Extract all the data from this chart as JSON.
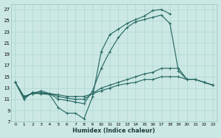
{
  "xlabel": "Humidex (Indice chaleur)",
  "background_color": "#cce8e4",
  "grid_color": "#aad4d0",
  "line_color": "#2a6b65",
  "xlim": [
    -0.5,
    23.5
  ],
  "ylim": [
    7,
    28
  ],
  "xticks": [
    0,
    1,
    2,
    3,
    4,
    5,
    6,
    7,
    8,
    9,
    10,
    11,
    12,
    13,
    14,
    15,
    16,
    17,
    18,
    19,
    20,
    21,
    22,
    23
  ],
  "yticks": [
    7,
    9,
    11,
    13,
    15,
    17,
    19,
    21,
    23,
    25,
    27
  ],
  "line1_x": [
    0,
    1,
    2,
    3,
    4,
    5,
    6,
    7,
    8,
    9,
    10,
    11,
    12,
    13,
    14,
    15,
    16,
    17,
    18,
    19,
    20,
    21
  ],
  "line1_y": [
    14.0,
    11.0,
    12.2,
    12.0,
    11.8,
    9.5,
    8.5,
    8.5,
    7.5,
    11.5,
    19.5,
    22.5,
    23.5,
    24.5,
    25.2,
    25.8,
    26.8,
    27.0,
    26.2,
    null,
    null,
    null
  ],
  "line2_x": [
    0,
    1,
    2,
    3,
    4,
    5,
    6,
    7,
    8,
    9,
    10,
    11,
    12,
    13,
    14,
    15,
    16,
    17,
    18,
    19,
    20,
    21,
    22,
    23
  ],
  "line2_y": [
    14.0,
    11.2,
    12.2,
    12.2,
    12.0,
    11.0,
    10.8,
    10.5,
    10.2,
    12.5,
    16.5,
    19.5,
    22.0,
    23.8,
    24.8,
    25.2,
    25.6,
    26.0,
    24.5,
    16.0,
    14.5,
    14.5,
    14.0,
    13.5
  ],
  "line3_x": [
    0,
    1,
    2,
    3,
    4,
    5,
    6,
    7,
    8,
    9,
    10,
    11,
    12,
    13,
    14,
    15,
    16,
    17,
    18,
    19,
    20,
    21,
    22,
    23
  ],
  "line3_y": [
    14.0,
    11.5,
    12.0,
    12.5,
    12.0,
    11.5,
    11.2,
    11.0,
    11.0,
    12.0,
    13.0,
    13.5,
    14.0,
    14.5,
    15.0,
    15.5,
    15.8,
    16.5,
    16.5,
    16.5,
    14.5,
    14.5,
    14.0,
    13.5
  ],
  "line4_x": [
    0,
    1,
    2,
    3,
    4,
    5,
    6,
    7,
    8,
    9,
    10,
    11,
    12,
    13,
    14,
    15,
    16,
    17,
    18,
    19,
    20,
    21,
    22,
    23
  ],
  "line4_y": [
    14.0,
    11.5,
    12.0,
    12.0,
    12.0,
    11.8,
    11.5,
    11.5,
    11.5,
    12.0,
    12.5,
    13.0,
    13.5,
    13.8,
    14.0,
    14.5,
    14.5,
    15.0,
    15.0,
    15.0,
    14.5,
    14.5,
    14.0,
    13.5
  ]
}
